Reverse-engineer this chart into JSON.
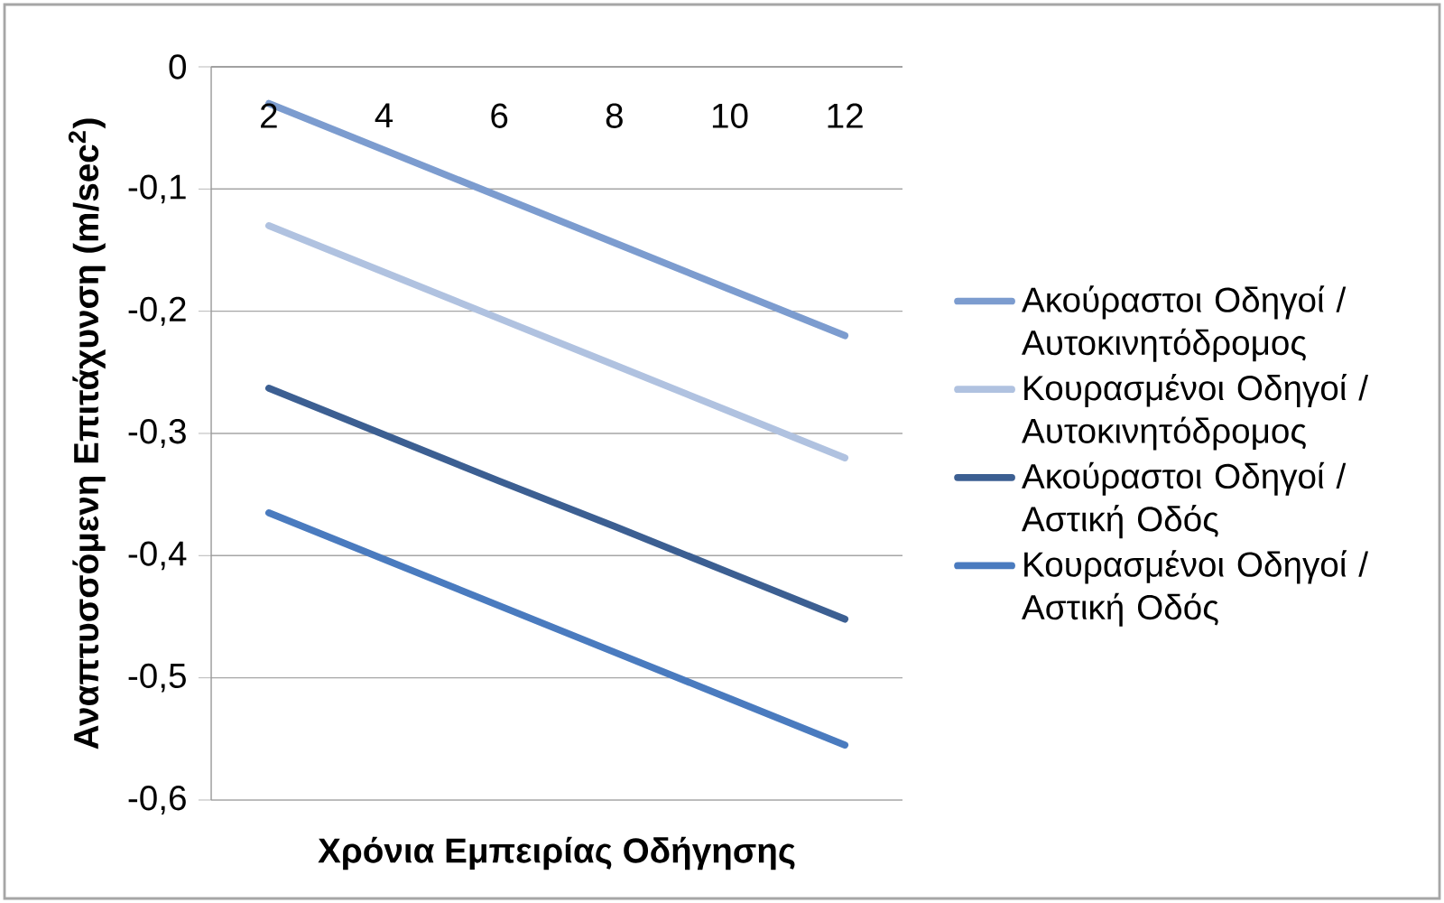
{
  "chart_data": {
    "type": "line",
    "xlabel": "Χρόνια Εμπειρίας Οδήγησης",
    "ylabel": "**Αναπτυσσόμενη Επιτάχυνση (m/sec$^{2}$)**",
    "categories": [
      "2",
      "4",
      "6",
      "8",
      "10",
      "12"
    ],
    "series": [
      {
        "name": "Ακούραστοι Οδηγοί / Αυτοκινητόδρομος",
        "color": "#7c9ccf",
        "values": [
          -0.03,
          -0.068,
          -0.106,
          -0.144,
          -0.182,
          -0.22
        ]
      },
      {
        "name": "Κουρασμένοι Οδηγοί / Αυτοκινητόδρομος",
        "color": "#b0c2e0",
        "values": [
          -0.13,
          -0.168,
          -0.206,
          -0.244,
          -0.282,
          -0.32
        ]
      },
      {
        "name": "Ακούραστοι Οδηγοί / Αστική Οδός",
        "color": "#3c5f92",
        "values": [
          -0.263,
          -0.301,
          -0.339,
          -0.376,
          -0.414,
          -0.452
        ]
      },
      {
        "name": "Κουρασμένοι Οδηγοί / Αστική Οδός",
        "color": "#4a7bbf",
        "values": [
          -0.365,
          -0.403,
          -0.441,
          -0.479,
          -0.517,
          -0.555
        ]
      }
    ],
    "ylim": [
      -0.6,
      0
    ],
    "yticks": [
      {
        "value": -0.6,
        "label": "-0,6"
      },
      {
        "value": -0.5,
        "label": "-0,5"
      },
      {
        "value": -0.4,
        "label": "-0,4"
      },
      {
        "value": -0.3,
        "label": "-0,3"
      },
      {
        "value": -0.2,
        "label": "-0,2"
      },
      {
        "value": -0.1,
        "label": "-0,1"
      },
      0
    ],
    "grid": "y",
    "legend": "right",
    "line_style": "solid"
  }
}
